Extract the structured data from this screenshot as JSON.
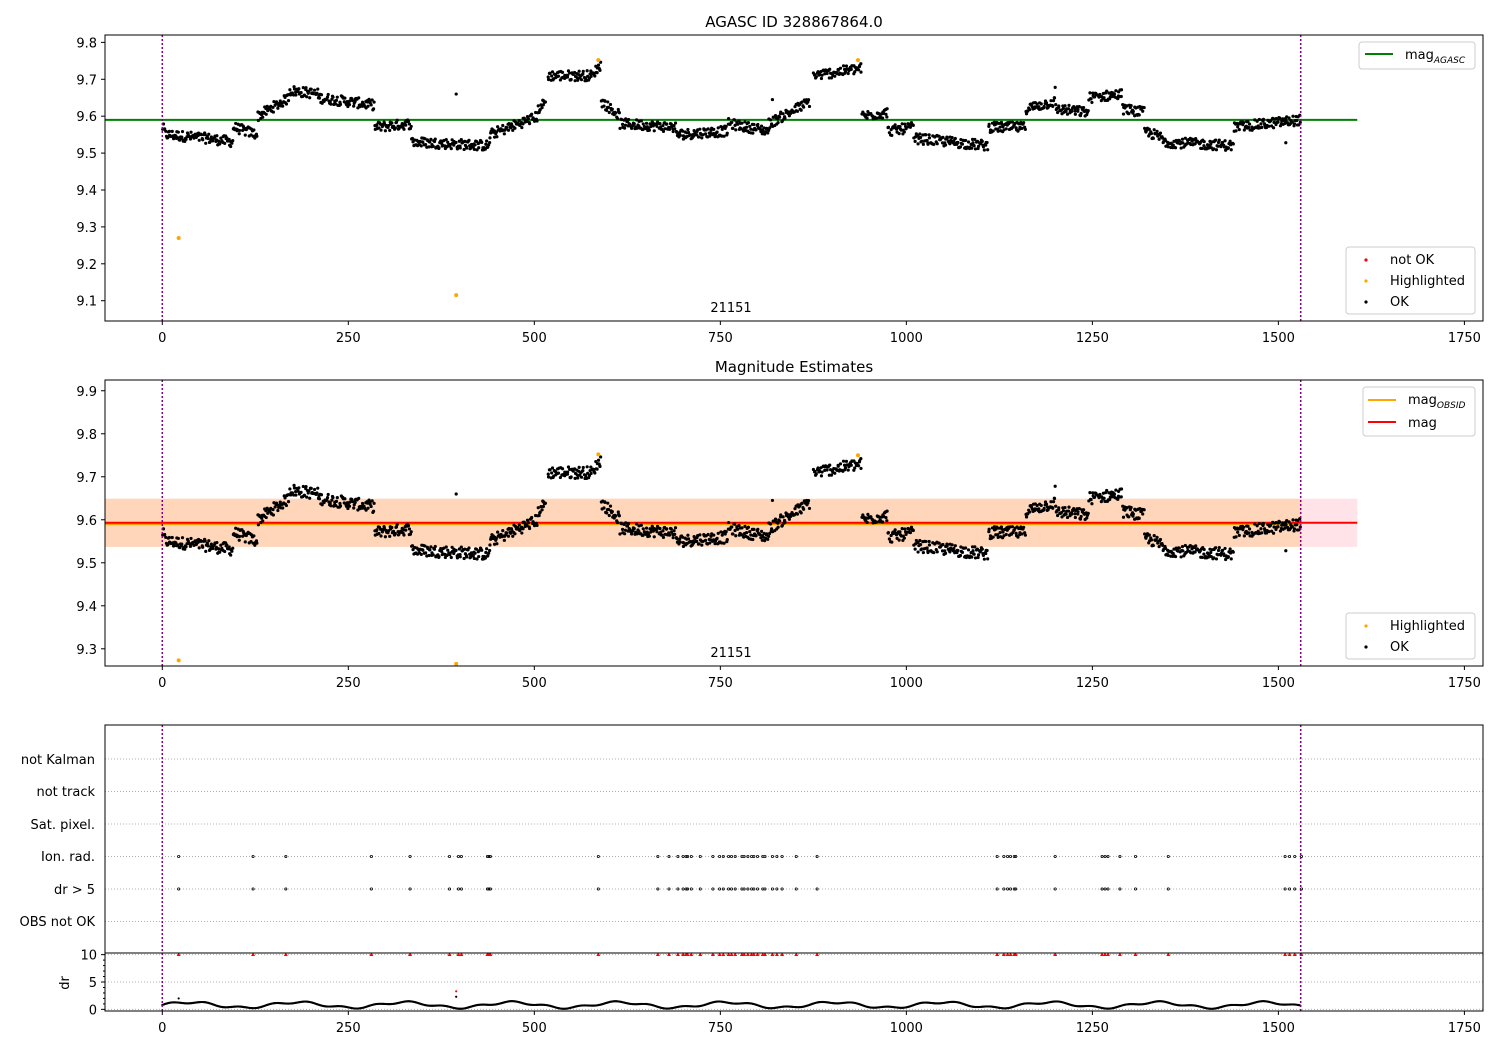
{
  "chart_data": [
    {
      "type": "scatter",
      "title": "AGASC ID 328867864.0",
      "xlim": [
        -77,
        1775
      ],
      "ylim": [
        9.045,
        9.82
      ],
      "xticks": [
        0,
        250,
        500,
        750,
        1000,
        1250,
        1500,
        1750
      ],
      "yticks": [
        9.1,
        9.2,
        9.3,
        9.4,
        9.5,
        9.6,
        9.7,
        9.8
      ],
      "reference_lines": [
        {
          "name": "mag_AGASC",
          "label_main": "mag",
          "label_sub": "AGASC",
          "y": 9.59,
          "x_range": [
            -77,
            1606
          ],
          "color": "#008000"
        }
      ],
      "vlines": [
        0,
        1530
      ],
      "vline_color": "#800080",
      "annotation": {
        "text": "21151",
        "x": 765,
        "y": 9.075
      },
      "legend_lines_position": "upper right",
      "legend_points_position": "lower right",
      "legend_points": [
        {
          "label": "not OK",
          "color": "#ff0000"
        },
        {
          "label": "Highlighted",
          "color": "#ffa500"
        },
        {
          "label": "OK",
          "color": "#000000"
        }
      ],
      "highlighted_points": [
        [
          22,
          9.27
        ],
        [
          395,
          9.115
        ],
        [
          586,
          9.752
        ],
        [
          935,
          9.752
        ]
      ]
    },
    {
      "type": "scatter",
      "title": "Magnitude Estimates",
      "xlim": [
        -77,
        1775
      ],
      "ylim": [
        9.26,
        9.925
      ],
      "xticks": [
        0,
        250,
        500,
        750,
        1000,
        1250,
        1500,
        1750
      ],
      "yticks": [
        9.3,
        9.4,
        9.5,
        9.6,
        9.7,
        9.8,
        9.9
      ],
      "reference_lines": [
        {
          "name": "mag_OBSID",
          "label_main": "mag",
          "label_sub": "OBSID",
          "y": 9.59,
          "x_range": [
            -77,
            1530
          ],
          "color": "#ffa500"
        },
        {
          "name": "mag",
          "label_main": "mag",
          "label_sub": "",
          "y": 9.593,
          "x_range": [
            -77,
            1606
          ],
          "color": "#ff0000"
        }
      ],
      "bands": [
        {
          "y_range": [
            9.537,
            9.649
          ],
          "x_range": [
            -77,
            1606
          ],
          "color": "#ffc0cb",
          "opacity": 0.45
        },
        {
          "y_range": [
            9.537,
            9.649
          ],
          "x_range": [
            -77,
            1530
          ],
          "color": "#ffa500",
          "opacity": 0.2
        }
      ],
      "vlines": [
        0,
        1530
      ],
      "vline_color": "#800080",
      "annotation": {
        "text": "21151",
        "x": 765,
        "y": 9.268
      },
      "legend_lines_position": "upper right",
      "legend_points_position": "lower right",
      "legend_points": [
        {
          "label": "Highlighted",
          "color": "#ffa500"
        },
        {
          "label": "OK",
          "color": "#000000"
        }
      ],
      "highlighted_points": [
        [
          22,
          9.273
        ],
        [
          395,
          9.265
        ],
        [
          586,
          9.752
        ],
        [
          935,
          9.75
        ]
      ]
    },
    {
      "type": "scatter",
      "title": "",
      "xlim": [
        -77,
        1775
      ],
      "categories": [
        "not Kalman",
        "not track",
        "Sat. pixel.",
        "Ion. rad.",
        "dr > 5",
        "OBS not OK"
      ],
      "flag_points": {
        "Ion. rad.": [
          22,
          122,
          166,
          281,
          333,
          386,
          398,
          402,
          437,
          439,
          441,
          586,
          666,
          681,
          693,
          700,
          704,
          706,
          711,
          723,
          740,
          749,
          754,
          761,
          765,
          770,
          779,
          782,
          787,
          792,
          795,
          800,
          807,
          810,
          820,
          826,
          833,
          852,
          880,
          1122,
          1131,
          1136,
          1140,
          1145,
          1147,
          1200,
          1263,
          1267,
          1271,
          1287,
          1308,
          1352,
          1509,
          1515,
          1522,
          1531
        ],
        "dr > 5": [
          22,
          122,
          166,
          281,
          333,
          386,
          398,
          402,
          437,
          439,
          441,
          586,
          666,
          681,
          693,
          700,
          704,
          706,
          711,
          723,
          740,
          749,
          754,
          761,
          765,
          770,
          779,
          782,
          787,
          792,
          795,
          800,
          807,
          810,
          820,
          826,
          833,
          852,
          880,
          1122,
          1131,
          1136,
          1140,
          1145,
          1147,
          1200,
          1263,
          1267,
          1271,
          1287,
          1308,
          1352,
          1509,
          1515,
          1522,
          1531
        ]
      },
      "vlines": [
        0,
        1530
      ],
      "vline_color": "#800080"
    },
    {
      "type": "line",
      "title": "",
      "ylabel": "dr",
      "xlim": [
        -77,
        1775
      ],
      "ylim": [
        -0.3,
        10.3
      ],
      "xticks": [
        0,
        250,
        500,
        750,
        1000,
        1250,
        1500,
        1750
      ],
      "yticks": [
        0,
        5,
        10
      ],
      "dr_clipped_marker_value": 10,
      "dr_outliers": [
        [
          22,
          2.0
        ],
        [
          395,
          3.3
        ],
        [
          395,
          2.3
        ]
      ],
      "vlines": [
        0,
        1530
      ],
      "vline_color": "#800080"
    }
  ]
}
